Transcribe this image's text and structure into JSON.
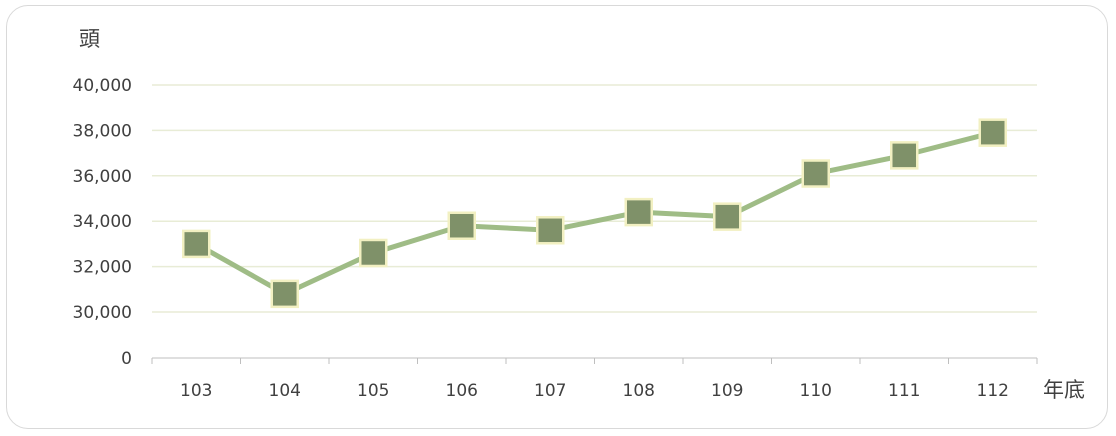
{
  "chart_data": {
    "type": "line",
    "ylabel": "頭",
    "xlabel": "年底",
    "categories": [
      "103",
      "104",
      "105",
      "106",
      "107",
      "108",
      "109",
      "110",
      "111",
      "112"
    ],
    "series": [
      {
        "values": [
          33000,
          30800,
          32600,
          33800,
          33600,
          34400,
          34200,
          36100,
          36900,
          37900
        ]
      }
    ],
    "y_ticks": [
      0,
      30000,
      32000,
      34000,
      36000,
      38000,
      40000
    ],
    "y_tick_labels": [
      "0",
      "30,000",
      "32,000",
      "34,000",
      "36,000",
      "38,000",
      "40,000"
    ],
    "axis_break": "0 to 30,000",
    "grid": true,
    "colors": {
      "line": "#9fbc86",
      "marker_fill": "#7f9169",
      "marker_border": "#f2f0c2",
      "grid": "#e8ecd6",
      "axis": "#bfbfbf",
      "text": "#404040"
    }
  }
}
